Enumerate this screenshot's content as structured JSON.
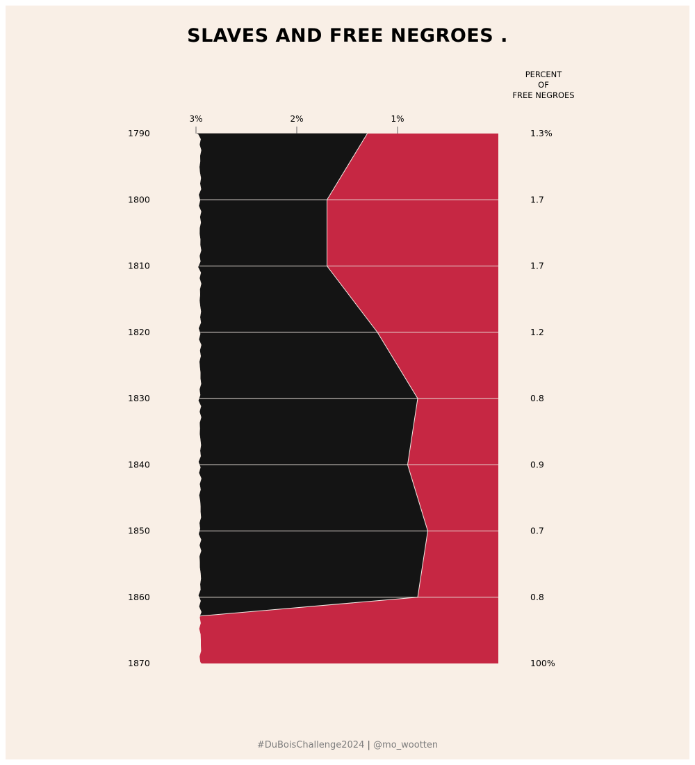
{
  "chart_data": {
    "type": "area",
    "title": "SLAVES AND FREE NEGROES .",
    "right_heading": [
      "PERCENT",
      "OF",
      "FREE NEGROES"
    ],
    "x_ticks": [
      {
        "value": 3,
        "label": "3%"
      },
      {
        "value": 2,
        "label": "2%"
      },
      {
        "value": 1,
        "label": "1%"
      }
    ],
    "xlim": [
      3,
      0
    ],
    "years": [
      1790,
      1800,
      1810,
      1820,
      1830,
      1840,
      1850,
      1860,
      1870
    ],
    "year_labels": [
      "1790",
      "1800",
      "1810",
      "1820",
      "1830",
      "1840",
      "1850",
      "1860",
      "1870"
    ],
    "percent_free": [
      1.3,
      1.7,
      1.7,
      1.2,
      0.8,
      0.9,
      0.7,
      0.8,
      100
    ],
    "percent_labels": [
      "1.3%",
      "1.7",
      "1.7",
      "1.2",
      "0.8",
      "0.9",
      "0.7",
      "0.8",
      "100%"
    ],
    "series": [
      {
        "name": "",
        "color": "#141414"
      },
      {
        "name": "",
        "color": "#c62743"
      }
    ]
  },
  "footer": {
    "hashtag": "#DuBoisChallenge2024",
    "separator": "|",
    "handle": "@mo_wootten"
  }
}
